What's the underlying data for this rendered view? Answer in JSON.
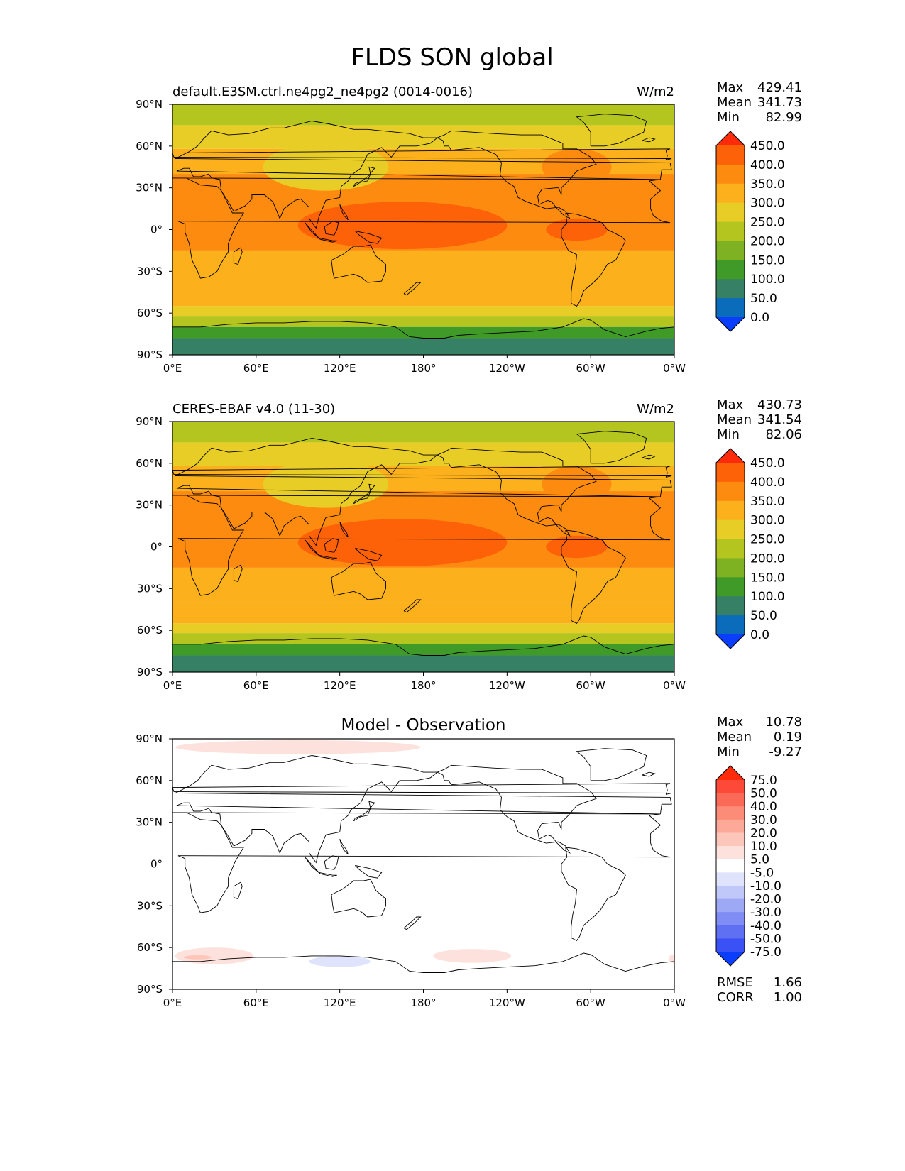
{
  "figure": {
    "title": "FLDS SON global"
  },
  "chart_data": [
    {
      "type": "heatmap",
      "id": "model",
      "left_title": "default.E3SM.ctrl.ne4pg2_ne4pg2 (0014-0016)",
      "units": "W/m2",
      "center_title": "",
      "stats": [
        {
          "label": "Max",
          "value": "429.41"
        },
        {
          "label": "Mean",
          "value": "341.73"
        },
        {
          "label": "Min",
          "value": "82.99"
        }
      ],
      "x_ticks": [
        "0°E",
        "60°E",
        "120°E",
        "180°",
        "120°W",
        "60°W",
        "0°W"
      ],
      "y_ticks": [
        "90°N",
        "60°N",
        "30°N",
        "0°",
        "30°S",
        "60°S",
        "90°S"
      ],
      "xlim": [
        0,
        360
      ],
      "ylim": [
        -90,
        90
      ],
      "colorbar": {
        "labels": [
          "450.0",
          "400.0",
          "350.0",
          "300.0",
          "250.0",
          "200.0",
          "150.0",
          "100.0",
          "50.0",
          "0.0"
        ],
        "colors": [
          "#ff2b0a",
          "#fe6208",
          "#fd8b0f",
          "#fbb01c",
          "#e8cd26",
          "#b5c51f",
          "#7fb222",
          "#3f9a28",
          "#368066",
          "#0c6cbc",
          "#0a3dfc"
        ]
      },
      "lat_bands": [
        {
          "lat": [
            90,
            75
          ],
          "color": "#b5c51f"
        },
        {
          "lat": [
            75,
            58
          ],
          "color": "#e8cd26"
        },
        {
          "lat": [
            58,
            40
          ],
          "color": "#fbb01c"
        },
        {
          "lat": [
            40,
            20
          ],
          "color": "#fd8b0f"
        },
        {
          "lat": [
            20,
            -15
          ],
          "color": "#fd8b0f"
        },
        {
          "lat": [
            -15,
            -40
          ],
          "color": "#fbb01c"
        },
        {
          "lat": [
            -40,
            -55
          ],
          "color": "#fbb01c"
        },
        {
          "lat": [
            -55,
            -62
          ],
          "color": "#e8cd26"
        },
        {
          "lat": [
            -62,
            -70
          ],
          "color": "#b5c51f"
        },
        {
          "lat": [
            -70,
            -78
          ],
          "color": "#3f9a28"
        },
        {
          "lat": [
            -78,
            -90
          ],
          "color": "#368066"
        }
      ],
      "blobs": [
        {
          "lon": 165,
          "lat": 3,
          "rlon": 75,
          "rlat": 17,
          "color": "#fe6208"
        },
        {
          "lon": 290,
          "lat": 0,
          "rlon": 22,
          "rlat": 8,
          "color": "#fe6208"
        },
        {
          "lon": 110,
          "lat": 45,
          "rlon": 45,
          "rlat": 17,
          "color": "#e8cd26"
        },
        {
          "lon": 290,
          "lat": 45,
          "rlon": 25,
          "rlat": 13,
          "color": "#fd8b0f"
        }
      ]
    },
    {
      "type": "heatmap",
      "id": "obs",
      "left_title": "CERES-EBAF v4.0 (11-30)",
      "units": "W/m2",
      "center_title": "",
      "stats": [
        {
          "label": "Max",
          "value": "430.73"
        },
        {
          "label": "Mean",
          "value": "341.54"
        },
        {
          "label": "Min",
          "value": "82.06"
        }
      ],
      "x_ticks": [
        "0°E",
        "60°E",
        "120°E",
        "180°",
        "120°W",
        "60°W",
        "0°W"
      ],
      "y_ticks": [
        "90°N",
        "60°N",
        "30°N",
        "0°",
        "30°S",
        "60°S",
        "90°S"
      ],
      "xlim": [
        0,
        360
      ],
      "ylim": [
        -90,
        90
      ],
      "colorbar": {
        "labels": [
          "450.0",
          "400.0",
          "350.0",
          "300.0",
          "250.0",
          "200.0",
          "150.0",
          "100.0",
          "50.0",
          "0.0"
        ],
        "colors": [
          "#ff2b0a",
          "#fe6208",
          "#fd8b0f",
          "#fbb01c",
          "#e8cd26",
          "#b5c51f",
          "#7fb222",
          "#3f9a28",
          "#368066",
          "#0c6cbc",
          "#0a3dfc"
        ]
      },
      "lat_bands": [
        {
          "lat": [
            90,
            75
          ],
          "color": "#b5c51f"
        },
        {
          "lat": [
            75,
            58
          ],
          "color": "#e8cd26"
        },
        {
          "lat": [
            58,
            40
          ],
          "color": "#fbb01c"
        },
        {
          "lat": [
            40,
            20
          ],
          "color": "#fd8b0f"
        },
        {
          "lat": [
            20,
            -15
          ],
          "color": "#fd8b0f"
        },
        {
          "lat": [
            -15,
            -40
          ],
          "color": "#fbb01c"
        },
        {
          "lat": [
            -40,
            -55
          ],
          "color": "#fbb01c"
        },
        {
          "lat": [
            -55,
            -62
          ],
          "color": "#e8cd26"
        },
        {
          "lat": [
            -62,
            -70
          ],
          "color": "#b5c51f"
        },
        {
          "lat": [
            -70,
            -78
          ],
          "color": "#3f9a28"
        },
        {
          "lat": [
            -78,
            -90
          ],
          "color": "#368066"
        }
      ],
      "blobs": [
        {
          "lon": 165,
          "lat": 3,
          "rlon": 75,
          "rlat": 17,
          "color": "#fe6208"
        },
        {
          "lon": 290,
          "lat": 0,
          "rlon": 22,
          "rlat": 8,
          "color": "#fe6208"
        },
        {
          "lon": 110,
          "lat": 45,
          "rlon": 45,
          "rlat": 17,
          "color": "#e8cd26"
        },
        {
          "lon": 290,
          "lat": 45,
          "rlon": 25,
          "rlat": 13,
          "color": "#fd8b0f"
        }
      ]
    },
    {
      "type": "heatmap",
      "id": "diff",
      "left_title": "",
      "units": "",
      "center_title": "Model - Observation",
      "stats": [
        {
          "label": "Max",
          "value": "10.78"
        },
        {
          "label": "Mean",
          "value": "0.19"
        },
        {
          "label": "Min",
          "value": "-9.27"
        }
      ],
      "extra_stats": [
        {
          "label": "RMSE",
          "value": "1.66"
        },
        {
          "label": "CORR",
          "value": "1.00"
        }
      ],
      "x_ticks": [
        "0°E",
        "60°E",
        "120°E",
        "180°",
        "120°W",
        "60°W",
        "0°W"
      ],
      "y_ticks": [
        "90°N",
        "60°N",
        "30°N",
        "0°",
        "30°S",
        "60°S",
        "90°S"
      ],
      "xlim": [
        0,
        360
      ],
      "ylim": [
        -90,
        90
      ],
      "colorbar": {
        "labels": [
          "75.0",
          "50.0",
          "40.0",
          "30.0",
          "20.0",
          "10.0",
          "5.0",
          "-5.0",
          "-10.0",
          "-20.0",
          "-30.0",
          "-40.0",
          "-50.0",
          "-75.0"
        ],
        "colors": [
          "#ff2b0a",
          "#fd4a38",
          "#fb6a57",
          "#fc8c77",
          "#fda99a",
          "#fdc6bb",
          "#fde1dc",
          "#ffffff",
          "#dfe3fb",
          "#c0c8f9",
          "#9ea9f6",
          "#7f8df4",
          "#5f70f2",
          "#3a52f5",
          "#0a3dfc"
        ]
      },
      "lat_bands": [],
      "blobs": [
        {
          "lon": 90,
          "lat": 84,
          "rlon": 88,
          "rlat": 5,
          "color": "#fde1dc"
        },
        {
          "lon": 30,
          "lat": -66,
          "rlon": 28,
          "rlat": 6,
          "color": "#fde1dc"
        },
        {
          "lon": 18,
          "lat": -67,
          "rlon": 10,
          "rlat": 1.5,
          "color": "#fdc6bb"
        },
        {
          "lon": 120,
          "lat": -70,
          "rlon": 22,
          "rlat": 4,
          "color": "#dfe3fb"
        },
        {
          "lon": 215,
          "lat": -66,
          "rlon": 28,
          "rlat": 5,
          "color": "#fde1dc"
        },
        {
          "lon": 359,
          "lat": -68,
          "rlon": 3,
          "rlat": 3,
          "color": "#fde1dc"
        }
      ]
    }
  ]
}
